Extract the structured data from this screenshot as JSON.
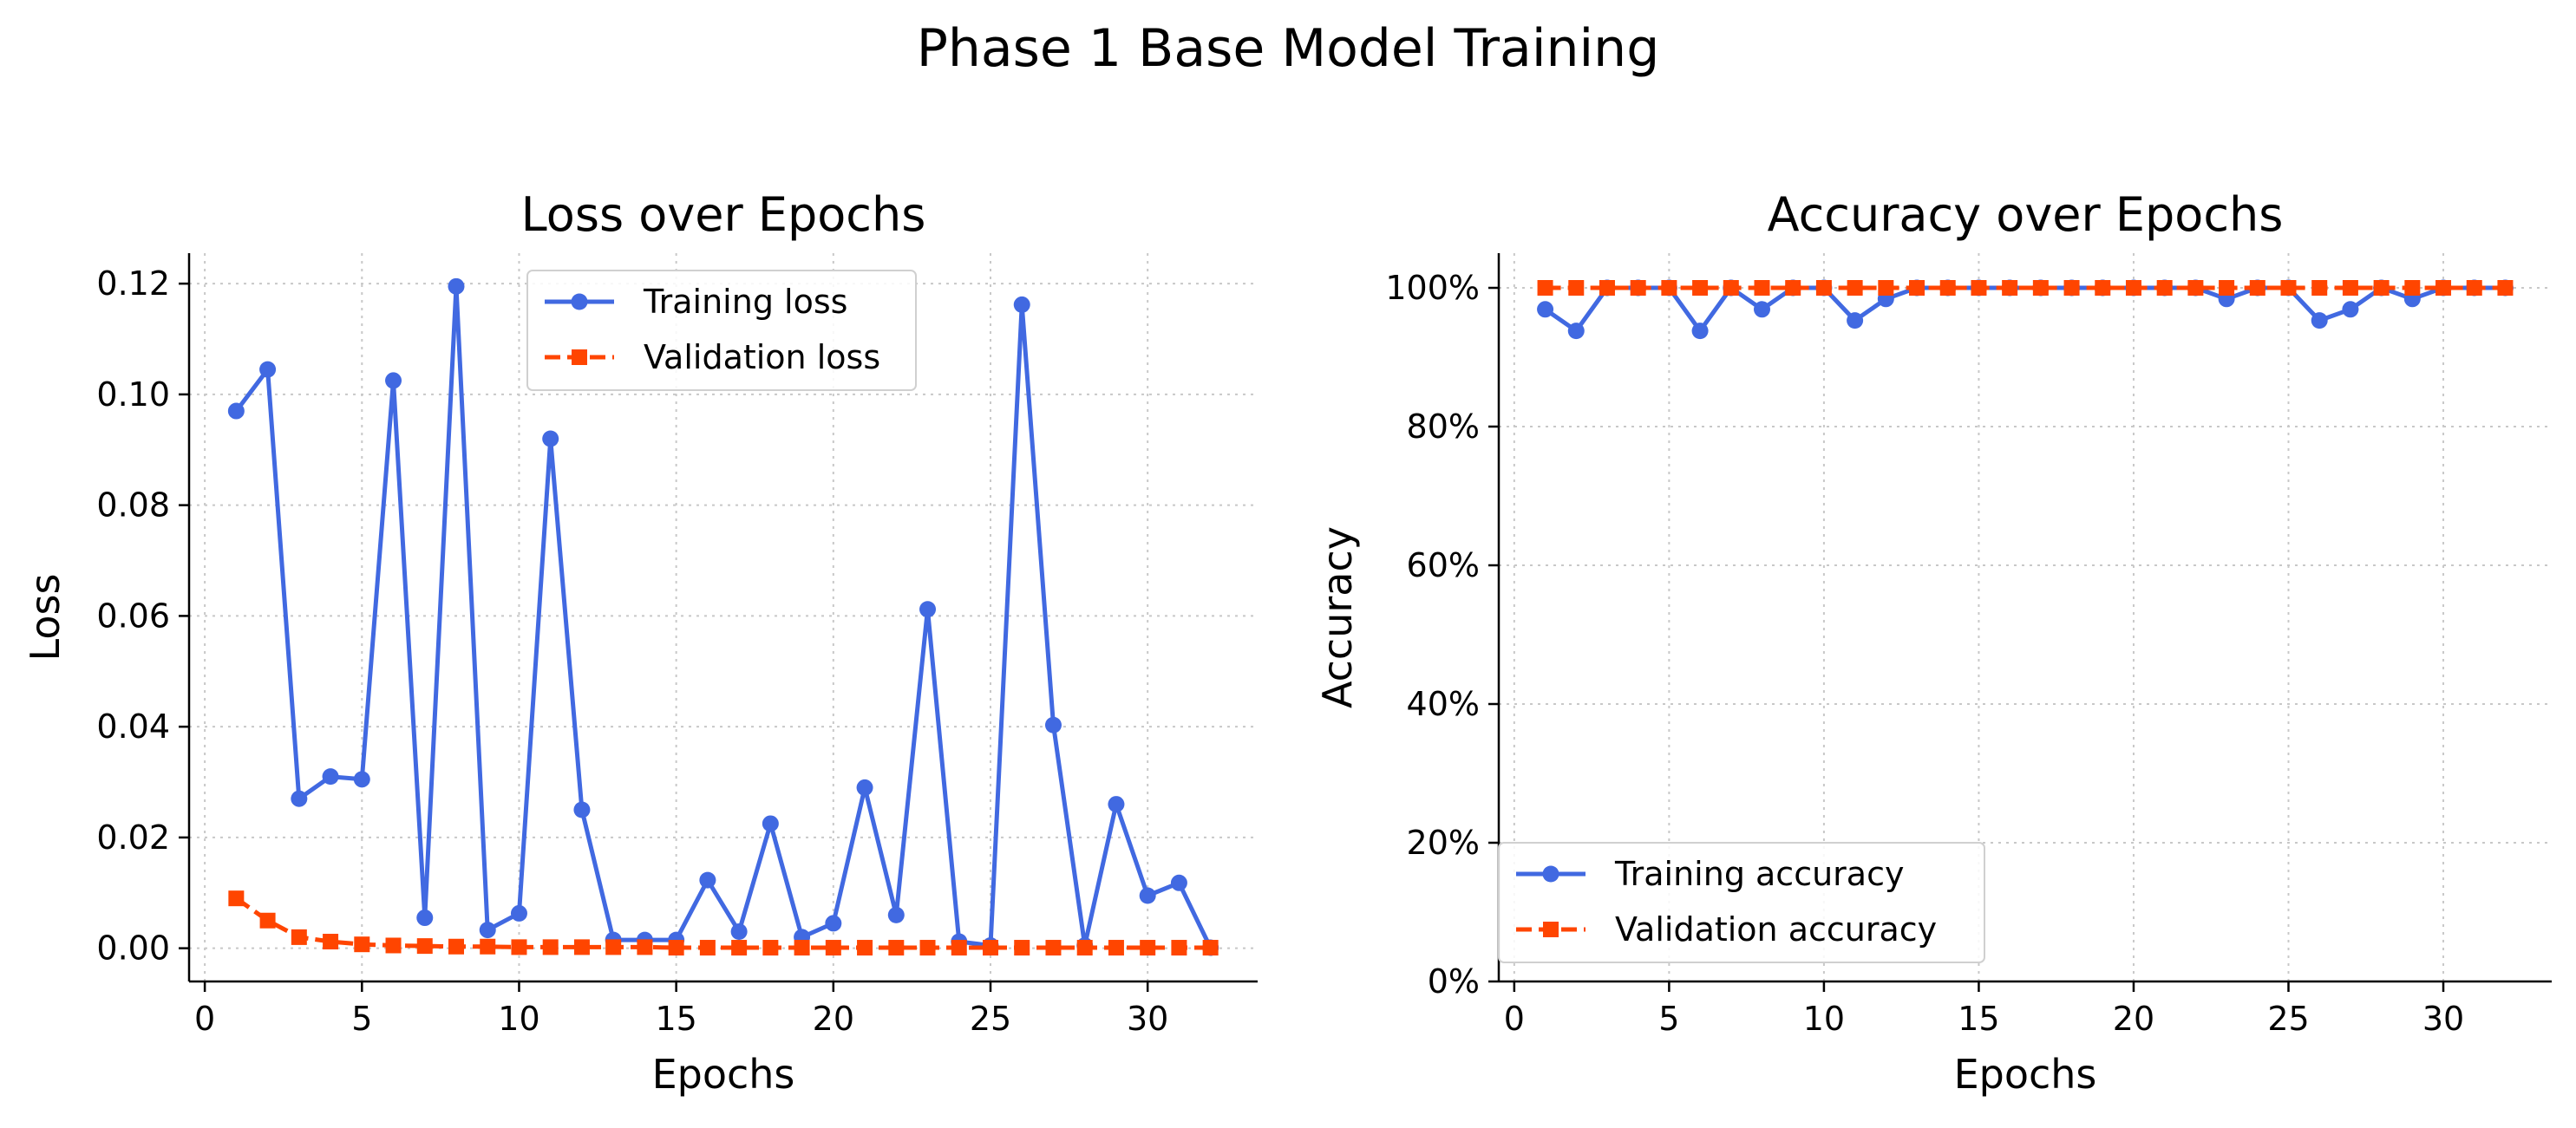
{
  "figure": {
    "title": "Phase 1 Base Model Training"
  },
  "chart_data": [
    {
      "type": "line",
      "title": "Loss over Epochs",
      "xlabel": "Epochs",
      "ylabel": "Loss",
      "xlim": [
        -0.5,
        33.5
      ],
      "ylim": [
        -0.006,
        0.1255
      ],
      "xticks": [
        0,
        5,
        10,
        15,
        20,
        25,
        30
      ],
      "yticks": [
        0.0,
        0.02,
        0.04,
        0.06,
        0.08,
        0.1,
        0.12
      ],
      "xtick_labels": [
        "0",
        "5",
        "10",
        "15",
        "20",
        "25",
        "30"
      ],
      "ytick_labels": [
        "0.00",
        "0.02",
        "0.04",
        "0.06",
        "0.08",
        "0.10",
        "0.12"
      ],
      "grid": true,
      "legend_position": "upper-center",
      "x": [
        1,
        2,
        3,
        4,
        5,
        6,
        7,
        8,
        9,
        10,
        11,
        12,
        13,
        14,
        15,
        16,
        17,
        18,
        19,
        20,
        21,
        22,
        23,
        24,
        25,
        26,
        27,
        28,
        29,
        30,
        31,
        32
      ],
      "series": [
        {
          "name": "Training loss",
          "color": "#4169E1",
          "marker": "circle",
          "dash": "solid",
          "values": [
            0.097,
            0.1045,
            0.027,
            0.031,
            0.0305,
            0.1025,
            0.0055,
            0.1195,
            0.0033,
            0.0063,
            0.092,
            0.025,
            0.0015,
            0.0015,
            0.0015,
            0.0123,
            0.003,
            0.0225,
            0.002,
            0.0045,
            0.029,
            0.006,
            0.0612,
            0.0012,
            0.0005,
            0.1162,
            0.0403,
            0.0005,
            0.026,
            0.0095,
            0.0118,
            0.0001
          ]
        },
        {
          "name": "Validation loss",
          "color": "#FF4500",
          "marker": "square",
          "dash": "dashed",
          "values": [
            0.009,
            0.005,
            0.002,
            0.0012,
            0.0007,
            0.0005,
            0.0004,
            0.0003,
            0.0003,
            0.0002,
            0.0002,
            0.0002,
            0.0002,
            0.0002,
            0.0001,
            0.0001,
            0.0001,
            0.0001,
            0.0001,
            0.0001,
            0.0001,
            0.0001,
            0.0001,
            0.0001,
            0.0001,
            0.0001,
            0.0001,
            0.0001,
            0.0001,
            0.0001,
            0.0001,
            0.0001
          ]
        }
      ]
    },
    {
      "type": "line",
      "title": "Accuracy over Epochs",
      "xlabel": "Epochs",
      "ylabel": "Accuracy",
      "xlim": [
        -0.5,
        33.5
      ],
      "ylim": [
        0,
        1.05
      ],
      "xticks": [
        0,
        5,
        10,
        15,
        20,
        25,
        30
      ],
      "yticks": [
        0,
        0.2,
        0.4,
        0.6,
        0.8,
        1.0
      ],
      "xtick_labels": [
        "0",
        "5",
        "10",
        "15",
        "20",
        "25",
        "30"
      ],
      "ytick_labels": [
        "0%",
        "20%",
        "40%",
        "60%",
        "80%",
        "100%"
      ],
      "grid": true,
      "legend_position": "lower-left",
      "x": [
        1,
        2,
        3,
        4,
        5,
        6,
        7,
        8,
        9,
        10,
        11,
        12,
        13,
        14,
        15,
        16,
        17,
        18,
        19,
        20,
        21,
        22,
        23,
        24,
        25,
        26,
        27,
        28,
        29,
        30,
        31,
        32
      ],
      "series": [
        {
          "name": "Training accuracy",
          "color": "#4169E1",
          "marker": "circle",
          "dash": "solid",
          "values": [
            0.969,
            0.938,
            1.0,
            1.0,
            1.0,
            0.938,
            1.0,
            0.969,
            1.0,
            1.0,
            0.953,
            0.984,
            1.0,
            1.0,
            1.0,
            1.0,
            1.0,
            1.0,
            1.0,
            1.0,
            1.0,
            1.0,
            0.984,
            1.0,
            1.0,
            0.953,
            0.969,
            1.0,
            0.984,
            1.0,
            1.0,
            1.0
          ]
        },
        {
          "name": "Validation accuracy",
          "color": "#FF4500",
          "marker": "square",
          "dash": "dashed",
          "values": [
            1.0,
            1.0,
            1.0,
            1.0,
            1.0,
            1.0,
            1.0,
            1.0,
            1.0,
            1.0,
            1.0,
            1.0,
            1.0,
            1.0,
            1.0,
            1.0,
            1.0,
            1.0,
            1.0,
            1.0,
            1.0,
            1.0,
            1.0,
            1.0,
            1.0,
            1.0,
            1.0,
            1.0,
            1.0,
            1.0,
            1.0,
            1.0
          ]
        }
      ]
    }
  ]
}
